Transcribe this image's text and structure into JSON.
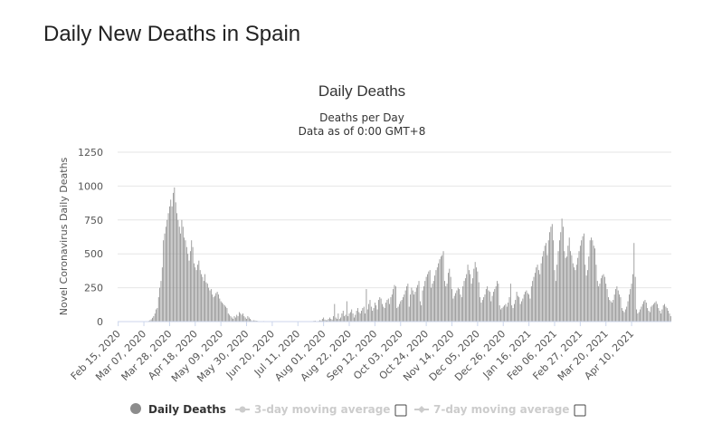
{
  "page": {
    "title": "Daily New Deaths in Spain"
  },
  "colors": {
    "bar": "#8c8c8c",
    "grid": "#e6e6e6",
    "legend_off": "#cccccc"
  },
  "chart_data": {
    "type": "bar",
    "title": "Daily Deaths",
    "subtitle_lines": [
      "Deaths per Day",
      "Data as of 0:00 GMT+8"
    ],
    "ylabel": "Novel Coronavirus Daily Deaths",
    "xlabel": "",
    "ylim": [
      0,
      1250
    ],
    "y_ticks": [
      0,
      250,
      500,
      750,
      1000,
      1250
    ],
    "x_start_date": "2020-02-15",
    "x_end_date": "2021-04-16",
    "x_tick_labels": [
      "Feb 15, 2020",
      "Mar 07, 2020",
      "Mar 28, 2020",
      "Apr 18, 2020",
      "May 09, 2020",
      "May 30, 2020",
      "Jun 20, 2020",
      "Jul 11, 2020",
      "Aug 01, 2020",
      "Aug 22, 2020",
      "Sep 12, 2020",
      "Oct 03, 2020",
      "Oct 24, 2020",
      "Nov 14, 2020",
      "Dec 05, 2020",
      "Dec 26, 2020",
      "Jan 16, 2021",
      "Feb 06, 2021",
      "Feb 27, 2021",
      "Mar 20, 2021",
      "Apr 10, 2021"
    ],
    "series": [
      {
        "name": "Daily Deaths",
        "values": [
          0,
          0,
          0,
          0,
          0,
          0,
          0,
          0,
          0,
          0,
          0,
          0,
          0,
          0,
          0,
          0,
          0,
          0,
          0,
          0,
          0,
          0,
          1,
          2,
          3,
          5,
          10,
          17,
          28,
          40,
          60,
          90,
          100,
          180,
          250,
          300,
          400,
          600,
          650,
          700,
          750,
          800,
          850,
          900,
          850,
          950,
          990,
          880,
          800,
          750,
          700,
          650,
          750,
          700,
          620,
          600,
          550,
          500,
          450,
          520,
          600,
          550,
          430,
          400,
          380,
          420,
          450,
          380,
          350,
          330,
          300,
          350,
          290,
          280,
          250,
          230,
          240,
          200,
          180,
          190,
          210,
          220,
          200,
          170,
          150,
          140,
          130,
          120,
          110,
          100,
          60,
          50,
          40,
          30,
          20,
          40,
          30,
          50,
          40,
          70,
          60,
          50,
          60,
          40,
          30,
          20,
          40,
          30,
          20,
          10,
          5,
          10,
          8,
          6,
          5,
          3,
          2,
          3,
          2,
          4,
          2,
          3,
          2,
          2,
          1,
          1,
          1,
          1,
          1,
          1,
          1,
          1,
          1,
          2,
          2,
          3,
          1,
          1,
          1,
          1,
          1,
          1,
          1,
          1,
          1,
          1,
          1,
          1,
          1,
          1,
          1,
          1,
          1,
          1,
          1,
          2,
          2,
          2,
          2,
          3,
          5,
          7,
          2,
          1,
          5,
          10,
          8,
          20,
          30,
          15,
          10,
          10,
          20,
          30,
          20,
          15,
          40,
          130,
          30,
          20,
          60,
          20,
          30,
          60,
          80,
          40,
          50,
          150,
          40,
          60,
          70,
          90,
          60,
          30,
          50,
          80,
          100,
          70,
          60,
          80,
          100,
          110,
          60,
          240,
          90,
          130,
          160,
          110,
          80,
          100,
          140,
          120,
          90,
          160,
          180,
          170,
          130,
          110,
          100,
          140,
          160,
          170,
          130,
          180,
          200,
          240,
          270,
          260,
          100,
          110,
          130,
          150,
          160,
          180,
          200,
          230,
          260,
          280,
          110,
          200,
          250,
          230,
          200,
          220,
          250,
          270,
          300,
          150,
          120,
          230,
          260,
          300,
          330,
          350,
          370,
          380,
          250,
          280,
          300,
          340,
          380,
          400,
          430,
          460,
          480,
          490,
          520,
          300,
          260,
          280,
          360,
          390,
          330,
          240,
          170,
          190,
          210,
          230,
          250,
          240,
          200,
          180,
          260,
          300,
          320,
          350,
          420,
          380,
          350,
          280,
          320,
          390,
          440,
          400,
          370,
          290,
          180,
          140,
          160,
          180,
          200,
          240,
          260,
          230,
          220,
          150,
          190,
          220,
          240,
          260,
          300,
          280,
          120,
          90,
          100,
          110,
          120,
          130,
          110,
          140,
          180,
          280,
          120,
          100,
          130,
          160,
          220,
          190,
          180,
          130,
          150,
          170,
          200,
          220,
          230,
          210,
          200,
          170,
          260,
          300,
          330,
          360,
          400,
          420,
          380,
          350,
          430,
          480,
          520,
          560,
          580,
          490,
          600,
          660,
          700,
          720,
          600,
          380,
          300,
          420,
          520,
          600,
          660,
          760,
          700,
          520,
          470,
          480,
          560,
          620,
          520,
          490,
          430,
          400,
          380,
          420,
          470,
          520,
          560,
          600,
          630,
          650,
          420,
          340,
          380,
          480,
          600,
          620,
          600,
          560,
          540,
          420,
          300,
          260,
          280,
          320,
          340,
          350,
          330,
          280,
          240,
          180,
          160,
          150,
          140,
          160,
          200,
          240,
          260,
          230,
          200,
          180,
          100,
          80,
          70,
          90,
          110,
          150,
          200,
          240,
          280,
          350,
          580,
          330,
          90,
          60,
          70,
          90,
          110,
          130,
          150,
          160,
          140,
          100,
          80,
          70,
          110,
          120,
          130,
          140,
          150,
          130,
          100,
          80,
          60,
          90,
          120,
          130,
          110,
          100,
          80,
          60,
          40
        ]
      }
    ],
    "legend": [
      {
        "label": "Daily Deaths",
        "active": true
      },
      {
        "label": "3-day moving average",
        "active": false
      },
      {
        "label": "7-day moving average",
        "active": false
      }
    ]
  }
}
